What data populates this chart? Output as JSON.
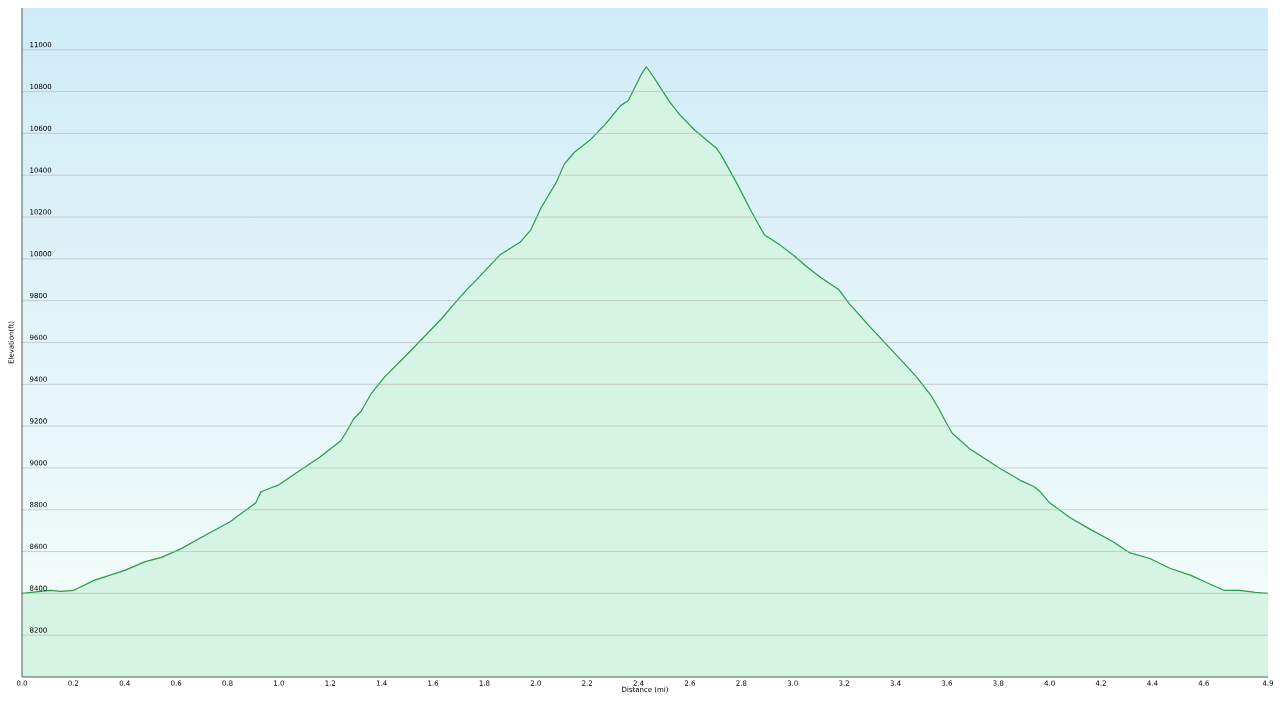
{
  "chart_data": {
    "type": "area",
    "xlabel": "Distance  (mi)",
    "ylabel": "Elevation(ft)",
    "x": [
      0,
      0.11,
      0.15,
      0.2,
      0.28,
      0.4,
      0.48,
      0.54,
      0.62,
      0.69,
      0.81,
      0.91,
      0.93,
      0.97,
      1.0,
      1.08,
      1.16,
      1.24,
      1.26,
      1.29,
      1.32,
      1.36,
      1.41,
      1.51,
      1.63,
      1.69,
      1.73,
      1.78,
      1.86,
      1.94,
      1.98,
      2.02,
      2.08,
      2.11,
      2.15,
      2.21,
      2.27,
      2.33,
      2.36,
      2.41,
      2.43,
      2.46,
      2.52,
      2.56,
      2.62,
      2.7,
      2.72,
      2.78,
      2.84,
      2.89,
      2.95,
      3.01,
      3.05,
      3.11,
      3.18,
      3.22,
      3.3,
      3.38,
      3.48,
      3.54,
      3.57,
      3.59,
      3.62,
      3.69,
      3.75,
      3.81,
      3.89,
      3.94,
      3.96,
      4.0,
      4.08,
      4.16,
      4.24,
      4.31,
      4.39,
      4.47,
      4.55,
      4.61,
      4.68,
      4.74,
      4.8,
      4.85
    ],
    "series": [
      {
        "color": "#2a9a48",
        "values": [
          8400,
          8414,
          8410,
          8414,
          8462,
          8510,
          8552,
          8571,
          8614,
          8662,
          8743,
          8833,
          8886,
          8905,
          8919,
          8986,
          9052,
          9129,
          9167,
          9233,
          9271,
          9357,
          9433,
          9557,
          9710,
          9795,
          9852,
          9914,
          10019,
          10081,
          10138,
          10243,
          10367,
          10452,
          10510,
          10567,
          10643,
          10733,
          10757,
          10881,
          10919,
          10867,
          10752,
          10690,
          10614,
          10533,
          10500,
          10367,
          10224,
          10114,
          10067,
          10010,
          9967,
          9910,
          9852,
          9786,
          9676,
          9571,
          9438,
          9343,
          9281,
          9233,
          9167,
          9090,
          9043,
          8995,
          8938,
          8910,
          8890,
          8833,
          8762,
          8705,
          8652,
          8595,
          8567,
          8519,
          8486,
          8452,
          8414,
          8414,
          8405,
          8400
        ]
      }
    ],
    "xlim": [
      0,
      4.85
    ],
    "ylim": [
      8000,
      11200
    ],
    "xticks": [
      {
        "value": 0,
        "label": "0.0"
      },
      0.2,
      0.4,
      0.6,
      0.8,
      {
        "value": 1,
        "label": "1.0"
      },
      1.2,
      1.4,
      1.6,
      1.8,
      {
        "value": 2,
        "label": "2.0"
      },
      2.2,
      2.4,
      2.6,
      2.8,
      {
        "value": 3,
        "label": "3.0"
      },
      3.2,
      3.4,
      3.6,
      3.8,
      {
        "value": 4,
        "label": "4.0"
      },
      4.2,
      4.4,
      4.6,
      {
        "value": 4.85,
        "label": "4.9"
      }
    ],
    "yticks": [
      8200,
      8400,
      8600,
      8800,
      9000,
      9200,
      9400,
      9600,
      9800,
      10000,
      10200,
      10400,
      10600,
      10800,
      11000
    ],
    "grid": "y"
  }
}
